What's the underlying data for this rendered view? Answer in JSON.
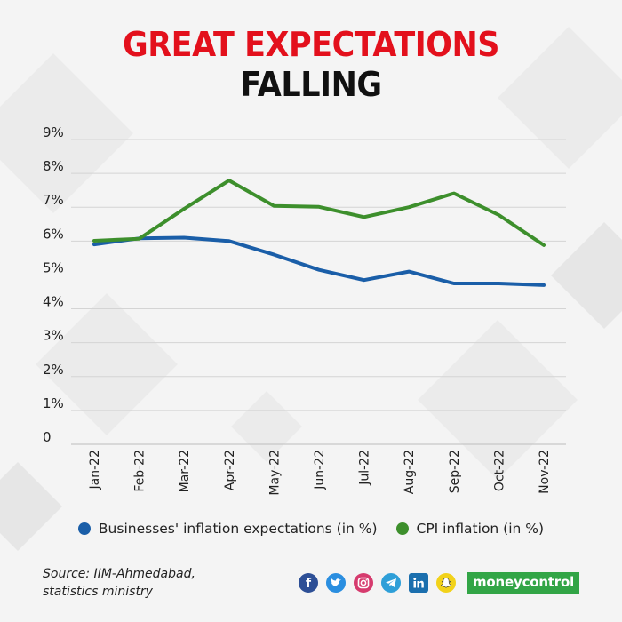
{
  "header": {
    "title_line1": "GREAT EXPECTATIONS",
    "title_line2": "FALLING"
  },
  "chart_data": {
    "type": "line",
    "categories": [
      "Jan-22",
      "Feb-22",
      "Mar-22",
      "Apr-22",
      "May-22",
      "Jun-22",
      "Jul-22",
      "Aug-22",
      "Sep-22",
      "Oct-22",
      "Nov-22"
    ],
    "ylim": [
      0,
      9
    ],
    "yticks": [
      0,
      1,
      2,
      3,
      4,
      5,
      6,
      7,
      8,
      9
    ],
    "ytick_labels": [
      "0",
      "1%",
      "2%",
      "3%",
      "4%",
      "5%",
      "6%",
      "7%",
      "8%",
      "9%"
    ],
    "grid": true,
    "legend_position": "bottom",
    "series": [
      {
        "name": "Businesses' inflation expectations (in %)",
        "color": "#1a5ea8",
        "values": [
          5.9,
          6.08,
          6.1,
          6.0,
          5.6,
          5.15,
          4.85,
          5.1,
          4.75,
          4.75,
          4.7
        ]
      },
      {
        "name": "CPI inflation (in %)",
        "color": "#3d8f2c",
        "values": [
          6.01,
          6.07,
          6.95,
          7.79,
          7.04,
          7.01,
          6.71,
          7.0,
          7.41,
          6.77,
          5.88
        ]
      }
    ]
  },
  "footer": {
    "source_line1": "Source: IIM-Ahmedabad,",
    "source_line2": "statistics ministry",
    "social_icons": [
      "facebook-icon",
      "twitter-icon",
      "instagram-icon",
      "telegram-icon",
      "linkedin-icon",
      "snapchat-icon"
    ],
    "brand": "moneycontrol"
  }
}
